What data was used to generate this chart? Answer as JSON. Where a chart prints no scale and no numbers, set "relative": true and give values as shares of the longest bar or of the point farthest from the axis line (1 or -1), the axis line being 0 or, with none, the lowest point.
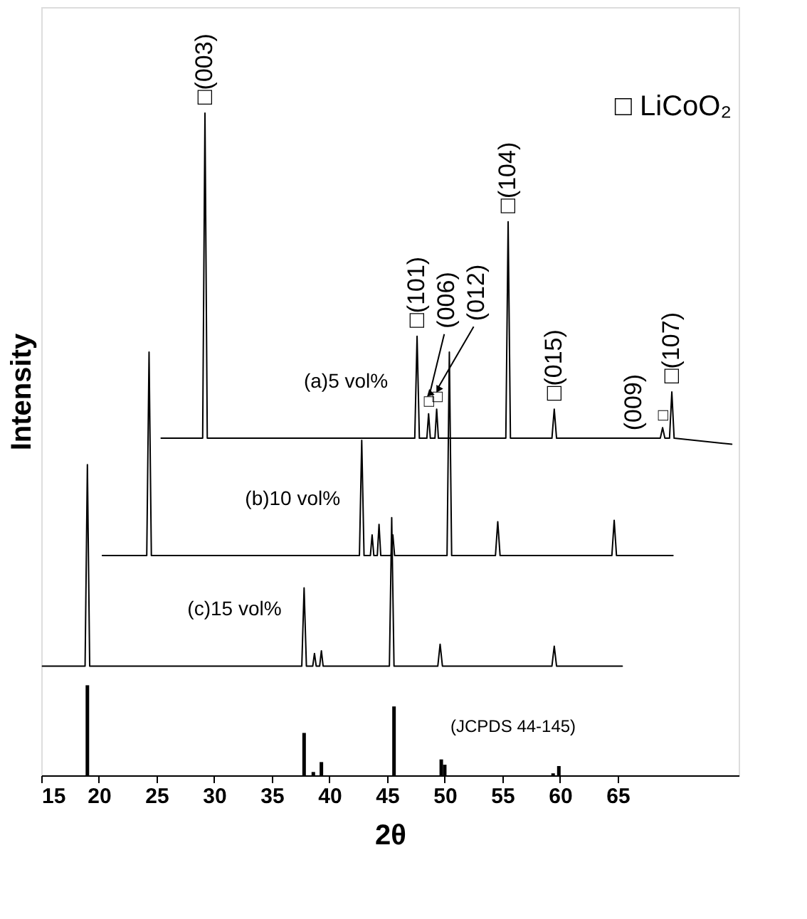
{
  "chart_data": {
    "type": "line",
    "xlabel": "2θ",
    "ylabel": "Intensity",
    "relative": true,
    "xlim": [
      15,
      75.5
    ],
    "xticks": [
      15,
      20,
      25,
      30,
      35,
      40,
      45,
      50,
      55,
      60,
      65
    ],
    "grid": false,
    "legend": "top right",
    "marker": "none",
    "line_style": "solid",
    "series": [
      {
        "name": "(a)5 vol%",
        "color": "#000000",
        "x": [
          25.4,
          29.0,
          29.2,
          29.4,
          47.4,
          47.6,
          47.8,
          48.45,
          48.6,
          48.75,
          49.15,
          49.3,
          49.45,
          55.3,
          55.5,
          55.7,
          59.3,
          59.5,
          59.7,
          68.7,
          68.9,
          69.1,
          69.5,
          69.7,
          69.9,
          74.9
        ],
        "values": [
          0.509,
          0.509,
          1.0,
          0.509,
          0.509,
          0.663,
          0.509,
          0.509,
          0.546,
          0.509,
          0.509,
          0.553,
          0.509,
          0.509,
          0.836,
          0.509,
          0.509,
          0.553,
          0.509,
          0.509,
          0.525,
          0.509,
          0.509,
          0.579,
          0.509,
          0.5
        ]
      },
      {
        "name": "(b)10 vol%",
        "color": "#000000",
        "x": [
          20.3,
          24.15,
          24.35,
          24.55,
          42.6,
          42.8,
          43.0,
          43.55,
          43.7,
          43.85,
          44.15,
          44.3,
          44.45,
          45.35,
          45.5,
          45.65,
          50.2,
          50.4,
          50.6,
          54.4,
          54.6,
          54.8,
          64.5,
          64.7,
          64.9,
          69.8
        ],
        "values": [
          0.332,
          0.332,
          0.639,
          0.332,
          0.332,
          0.506,
          0.332,
          0.332,
          0.363,
          0.332,
          0.332,
          0.379,
          0.332,
          0.332,
          0.363,
          0.332,
          0.332,
          0.639,
          0.332,
          0.332,
          0.383,
          0.332,
          0.332,
          0.385,
          0.332,
          0.332
        ]
      },
      {
        "name": "(c)15 vol%",
        "color": "#000000",
        "x": [
          15.1,
          18.8,
          19.0,
          19.2,
          37.6,
          37.8,
          38.0,
          38.55,
          38.7,
          38.85,
          39.15,
          39.3,
          39.45,
          45.2,
          45.4,
          45.6,
          49.4,
          49.6,
          49.8,
          59.3,
          59.5,
          59.7,
          65.4
        ],
        "values": [
          0.165,
          0.165,
          0.469,
          0.165,
          0.165,
          0.283,
          0.165,
          0.165,
          0.184,
          0.165,
          0.165,
          0.188,
          0.165,
          0.165,
          0.389,
          0.165,
          0.165,
          0.198,
          0.165,
          0.165,
          0.195,
          0.165,
          0.165
        ]
      },
      {
        "name": "(JCPDS 44-145)",
        "type": "bar",
        "color": "#000000",
        "x": [
          19.0,
          37.8,
          38.6,
          39.3,
          45.6,
          49.7,
          50.0,
          59.4,
          59.9
        ],
        "values": [
          0.136,
          0.064,
          0.005,
          0.02,
          0.104,
          0.024,
          0.016,
          0.003,
          0.014
        ]
      }
    ],
    "annotations": [
      "□ LiCoO₂",
      {
        "text": "□(003)",
        "x": 29.2,
        "y": 1.0
      },
      {
        "text": "□(101)",
        "x": 47.6,
        "y": 0.663
      },
      {
        "text": "□",
        "x": 48.6,
        "y": 0.546
      },
      "(006)",
      {
        "text": "□",
        "x": 49.3,
        "y": 0.553
      },
      "(012)",
      {
        "text": "□(104)",
        "x": 55.5,
        "y": 0.836
      },
      {
        "text": "□(015)",
        "x": 59.5,
        "y": 0.553
      },
      {
        "text": "□",
        "x": 68.9,
        "y": 0.525
      },
      "(009)",
      {
        "text": "□(107)",
        "x": 69.7,
        "y": 0.579
      }
    ]
  }
}
